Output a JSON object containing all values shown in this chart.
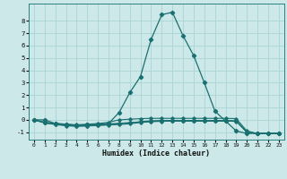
{
  "xlabel": "Humidex (Indice chaleur)",
  "bg_color": "#cce8e8",
  "grid_color": "#aad4d4",
  "line_color": "#1a7070",
  "xlim": [
    -0.5,
    23.5
  ],
  "ylim": [
    -1.6,
    9.4
  ],
  "x_ticks": [
    0,
    1,
    2,
    3,
    4,
    5,
    6,
    7,
    8,
    9,
    10,
    11,
    12,
    13,
    14,
    15,
    16,
    17,
    18,
    19,
    20,
    21,
    22,
    23
  ],
  "y_ticks": [
    -1,
    0,
    1,
    2,
    3,
    4,
    5,
    6,
    7,
    8
  ],
  "series": [
    [
      0.0,
      0.0,
      -0.3,
      -0.35,
      -0.45,
      -0.4,
      -0.35,
      -0.3,
      0.6,
      2.2,
      3.5,
      6.5,
      8.5,
      8.7,
      6.8,
      5.2,
      3.0,
      0.7,
      -0.1,
      -0.9,
      -1.1,
      -1.1,
      -1.1,
      -1.1
    ],
    [
      0.0,
      -0.2,
      -0.3,
      -0.35,
      -0.4,
      -0.35,
      -0.3,
      -0.2,
      0.0,
      0.05,
      0.1,
      0.12,
      0.12,
      0.12,
      0.12,
      0.12,
      0.12,
      0.12,
      0.12,
      0.1,
      -0.9,
      -1.1,
      -1.1,
      -1.1
    ],
    [
      0.0,
      -0.2,
      -0.3,
      -0.4,
      -0.45,
      -0.4,
      -0.38,
      -0.32,
      -0.28,
      -0.22,
      -0.18,
      -0.12,
      -0.1,
      -0.1,
      -0.1,
      -0.1,
      -0.1,
      -0.1,
      -0.1,
      -0.1,
      -1.0,
      -1.1,
      -1.1,
      -1.1
    ],
    [
      0.0,
      -0.25,
      -0.35,
      -0.45,
      -0.5,
      -0.48,
      -0.43,
      -0.38,
      -0.32,
      -0.25,
      -0.15,
      -0.08,
      -0.05,
      -0.05,
      -0.05,
      -0.05,
      -0.05,
      -0.05,
      -0.05,
      -0.08,
      -1.0,
      -1.1,
      -1.1,
      -1.1
    ],
    [
      0.0,
      -0.25,
      -0.38,
      -0.48,
      -0.52,
      -0.5,
      -0.46,
      -0.42,
      -0.38,
      -0.32,
      -0.22,
      -0.15,
      -0.12,
      -0.1,
      -0.1,
      -0.1,
      -0.1,
      -0.1,
      -0.1,
      -0.12,
      -1.0,
      -1.1,
      -1.1,
      -1.1
    ]
  ]
}
